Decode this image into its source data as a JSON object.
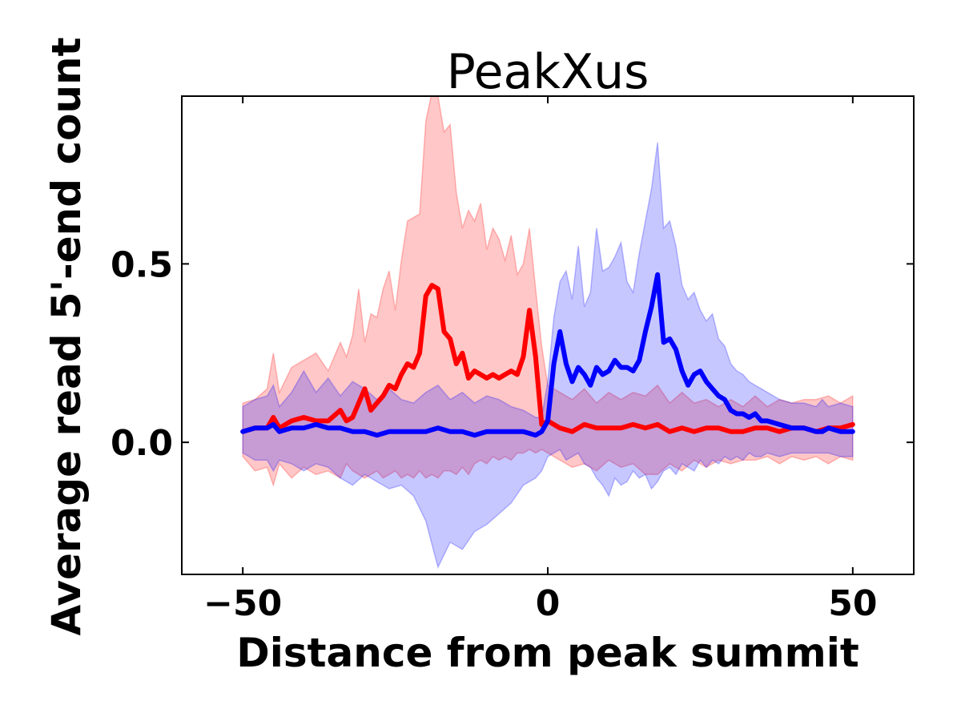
{
  "chart_data": {
    "type": "line",
    "title": "PeakXus",
    "xlabel": "Distance from peak summit",
    "ylabel": "Average read 5'-end count",
    "xlim": [
      -60,
      60
    ],
    "ylim": [
      -0.37,
      0.97
    ],
    "x_ticks": [
      {
        "value": -50,
        "label": "−50"
      },
      {
        "value": 0,
        "label": "0"
      },
      {
        "value": 50,
        "label": "50"
      }
    ],
    "y_ticks": [
      {
        "value": 0.0,
        "label": "0.0"
      },
      {
        "value": 0.5,
        "label": "0.5"
      }
    ],
    "grid": false,
    "legend": "none",
    "series": [
      {
        "color": "#ff0000",
        "band_color": "#ff0000",
        "x": [
          -50,
          -48,
          -46,
          -45,
          -44,
          -42,
          -40,
          -38,
          -36,
          -34,
          -33,
          -32,
          -31,
          -30,
          -29,
          -28,
          -27,
          -26,
          -25,
          -24,
          -23,
          -22,
          -21,
          -20,
          -19,
          -18,
          -17,
          -16,
          -15,
          -14,
          -13,
          -12,
          -11,
          -10,
          -9,
          -8,
          -7,
          -6,
          -5,
          -4,
          -3,
          -2,
          -1,
          0,
          2,
          4,
          6,
          8,
          10,
          12,
          14,
          16,
          18,
          20,
          22,
          24,
          26,
          28,
          30,
          32,
          34,
          36,
          38,
          40,
          42,
          44,
          46,
          48,
          50
        ],
        "mean": [
          0.03,
          0.04,
          0.04,
          0.07,
          0.04,
          0.06,
          0.07,
          0.06,
          0.06,
          0.09,
          0.06,
          0.07,
          0.11,
          0.15,
          0.09,
          0.11,
          0.13,
          0.16,
          0.15,
          0.19,
          0.22,
          0.21,
          0.25,
          0.41,
          0.44,
          0.43,
          0.31,
          0.29,
          0.22,
          0.25,
          0.18,
          0.2,
          0.19,
          0.18,
          0.19,
          0.18,
          0.19,
          0.2,
          0.19,
          0.24,
          0.37,
          0.24,
          0.05,
          0.06,
          0.04,
          0.03,
          0.05,
          0.04,
          0.04,
          0.04,
          0.05,
          0.04,
          0.05,
          0.03,
          0.04,
          0.03,
          0.04,
          0.04,
          0.03,
          0.03,
          0.04,
          0.04,
          0.03,
          0.04,
          0.04,
          0.03,
          0.04,
          0.04,
          0.05
        ],
        "upper": [
          0.11,
          0.12,
          0.15,
          0.25,
          0.14,
          0.21,
          0.23,
          0.25,
          0.2,
          0.28,
          0.24,
          0.3,
          0.43,
          0.28,
          0.36,
          0.35,
          0.43,
          0.48,
          0.37,
          0.51,
          0.62,
          0.63,
          0.64,
          0.9,
          0.98,
          0.97,
          0.87,
          0.89,
          0.7,
          0.6,
          0.65,
          0.62,
          0.67,
          0.54,
          0.6,
          0.57,
          0.51,
          0.58,
          0.47,
          0.5,
          0.6,
          0.43,
          0.27,
          0.16,
          0.14,
          0.12,
          0.15,
          0.11,
          0.14,
          0.12,
          0.14,
          0.13,
          0.16,
          0.11,
          0.14,
          0.11,
          0.12,
          0.1,
          0.12,
          0.1,
          0.13,
          0.1,
          0.12,
          0.11,
          0.12,
          0.12,
          0.13,
          0.11,
          0.13
        ],
        "lower": [
          -0.04,
          -0.08,
          -0.07,
          -0.12,
          -0.06,
          -0.1,
          -0.07,
          -0.09,
          -0.08,
          -0.1,
          -0.06,
          -0.08,
          -0.09,
          -0.1,
          -0.09,
          -0.08,
          -0.1,
          -0.09,
          -0.08,
          -0.1,
          -0.09,
          -0.1,
          -0.08,
          -0.1,
          -0.09,
          -0.1,
          -0.08,
          -0.08,
          -0.09,
          -0.07,
          -0.09,
          -0.06,
          -0.05,
          -0.06,
          -0.04,
          -0.05,
          -0.04,
          -0.05,
          -0.03,
          -0.03,
          -0.02,
          -0.03,
          -0.02,
          -0.03,
          -0.05,
          -0.07,
          -0.06,
          -0.08,
          -0.05,
          -0.07,
          -0.06,
          -0.09,
          -0.09,
          -0.06,
          -0.08,
          -0.05,
          -0.07,
          -0.05,
          -0.06,
          -0.05,
          -0.05,
          -0.04,
          -0.06,
          -0.04,
          -0.05,
          -0.04,
          -0.06,
          -0.04,
          -0.05
        ]
      },
      {
        "color": "#0000ff",
        "band_color": "#0000ff",
        "x": [
          -50,
          -48,
          -46,
          -45,
          -44,
          -42,
          -40,
          -38,
          -36,
          -34,
          -32,
          -30,
          -28,
          -26,
          -24,
          -22,
          -20,
          -18,
          -16,
          -14,
          -12,
          -10,
          -8,
          -6,
          -4,
          -2,
          -1,
          0,
          1,
          2,
          3,
          4,
          5,
          6,
          7,
          8,
          9,
          10,
          11,
          12,
          13,
          14,
          15,
          16,
          17,
          18,
          19,
          20,
          21,
          22,
          23,
          24,
          25,
          26,
          27,
          28,
          29,
          30,
          31,
          32,
          33,
          34,
          35,
          36,
          38,
          40,
          42,
          44,
          45,
          46,
          48,
          50
        ],
        "mean": [
          0.03,
          0.04,
          0.04,
          0.05,
          0.03,
          0.04,
          0.04,
          0.05,
          0.04,
          0.04,
          0.03,
          0.03,
          0.02,
          0.03,
          0.03,
          0.03,
          0.03,
          0.04,
          0.03,
          0.03,
          0.02,
          0.03,
          0.03,
          0.03,
          0.03,
          0.02,
          0.03,
          0.06,
          0.22,
          0.31,
          0.22,
          0.17,
          0.21,
          0.19,
          0.16,
          0.21,
          0.19,
          0.2,
          0.23,
          0.21,
          0.21,
          0.2,
          0.23,
          0.31,
          0.38,
          0.47,
          0.28,
          0.29,
          0.26,
          0.2,
          0.16,
          0.19,
          0.2,
          0.17,
          0.15,
          0.13,
          0.12,
          0.09,
          0.08,
          0.08,
          0.07,
          0.08,
          0.06,
          0.06,
          0.05,
          0.04,
          0.04,
          0.03,
          0.03,
          0.04,
          0.03,
          0.03
        ],
        "upper": [
          0.1,
          0.12,
          0.13,
          0.16,
          0.1,
          0.14,
          0.2,
          0.14,
          0.18,
          0.13,
          0.17,
          0.15,
          0.12,
          0.15,
          0.12,
          0.11,
          0.14,
          0.16,
          0.12,
          0.14,
          0.11,
          0.13,
          0.12,
          0.1,
          0.09,
          0.07,
          0.07,
          0.17,
          0.35,
          0.45,
          0.48,
          0.4,
          0.55,
          0.38,
          0.42,
          0.6,
          0.48,
          0.49,
          0.52,
          0.56,
          0.45,
          0.42,
          0.53,
          0.62,
          0.71,
          0.84,
          0.6,
          0.62,
          0.55,
          0.44,
          0.4,
          0.42,
          0.37,
          0.34,
          0.36,
          0.29,
          0.27,
          0.22,
          0.2,
          0.19,
          0.17,
          0.16,
          0.15,
          0.14,
          0.12,
          0.11,
          0.11,
          0.1,
          0.12,
          0.1,
          0.11,
          0.1
        ],
        "lower": [
          -0.03,
          -0.05,
          -0.05,
          -0.08,
          -0.05,
          -0.06,
          -0.08,
          -0.06,
          -0.07,
          -0.1,
          -0.12,
          -0.09,
          -0.11,
          -0.13,
          -0.12,
          -0.15,
          -0.22,
          -0.35,
          -0.28,
          -0.3,
          -0.25,
          -0.23,
          -0.2,
          -0.17,
          -0.12,
          -0.1,
          -0.08,
          -0.04,
          -0.03,
          -0.02,
          -0.05,
          -0.04,
          -0.03,
          -0.06,
          -0.07,
          -0.1,
          -0.12,
          -0.15,
          -0.1,
          -0.12,
          -0.11,
          -0.08,
          -0.1,
          -0.09,
          -0.13,
          -0.11,
          -0.08,
          -0.07,
          -0.09,
          -0.06,
          -0.07,
          -0.08,
          -0.05,
          -0.07,
          -0.05,
          -0.06,
          -0.04,
          -0.05,
          -0.04,
          -0.05,
          -0.03,
          -0.04,
          -0.04,
          -0.03,
          -0.04,
          -0.03,
          -0.03,
          -0.03,
          -0.03,
          -0.03,
          -0.04,
          -0.04
        ]
      }
    ]
  }
}
